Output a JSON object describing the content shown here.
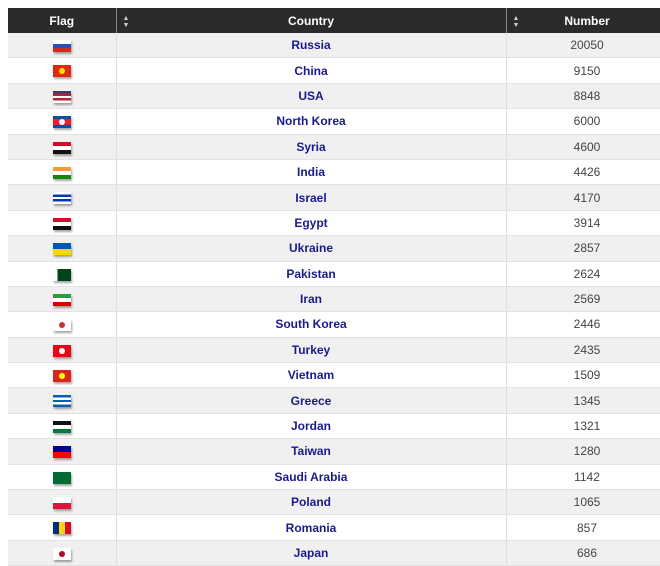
{
  "header": {
    "flag": "Flag",
    "country": "Country",
    "number": "Number",
    "sort_icon": "sort-icon"
  },
  "rows": [
    {
      "country": "Russia",
      "number": "20050",
      "flag": {
        "dir": "v",
        "colors": [
          "#ffffff",
          "#2a4fb5",
          "#d52b1e"
        ]
      }
    },
    {
      "country": "China",
      "number": "9150",
      "flag": {
        "dir": "v",
        "colors": [
          "#de2910"
        ],
        "dot": "#ffde00"
      }
    },
    {
      "country": "USA",
      "number": "8848",
      "flag": {
        "dir": "v",
        "colors": [
          "#3c3b6e",
          "#b22234",
          "#ffffff",
          "#b22234",
          "#ffffff"
        ]
      }
    },
    {
      "country": "North Korea",
      "number": "6000",
      "flag": {
        "dir": "v",
        "colors": [
          "#024fa2",
          "#ed1c27",
          "#ed1c27",
          "#024fa2"
        ],
        "dot": "#ffffff"
      }
    },
    {
      "country": "Syria",
      "number": "4600",
      "flag": {
        "dir": "v",
        "colors": [
          "#ce1126",
          "#ffffff",
          "#111111"
        ]
      }
    },
    {
      "country": "India",
      "number": "4426",
      "flag": {
        "dir": "v",
        "colors": [
          "#ff9933",
          "#ffffff",
          "#138808"
        ]
      }
    },
    {
      "country": "Israel",
      "number": "4170",
      "flag": {
        "dir": "v",
        "colors": [
          "#ffffff",
          "#0038b8",
          "#ffffff",
          "#0038b8",
          "#ffffff"
        ]
      }
    },
    {
      "country": "Egypt",
      "number": "3914",
      "flag": {
        "dir": "v",
        "colors": [
          "#ce1126",
          "#ffffff",
          "#111111"
        ]
      }
    },
    {
      "country": "Ukraine",
      "number": "2857",
      "flag": {
        "dir": "v",
        "colors": [
          "#0057b7",
          "#ffd700"
        ]
      }
    },
    {
      "country": "Pakistan",
      "number": "2624",
      "flag": {
        "dir": "h",
        "colors": [
          "#ffffff",
          "#01411c",
          "#01411c",
          "#01411c"
        ]
      }
    },
    {
      "country": "Iran",
      "number": "2569",
      "flag": {
        "dir": "v",
        "colors": [
          "#239f40",
          "#ffffff",
          "#da0000"
        ]
      }
    },
    {
      "country": "South Korea",
      "number": "2446",
      "flag": {
        "dir": "v",
        "colors": [
          "#ffffff"
        ],
        "dot": "#cd2e3a"
      }
    },
    {
      "country": "Turkey",
      "number": "2435",
      "flag": {
        "dir": "v",
        "colors": [
          "#e30a17"
        ],
        "dot": "#ffffff"
      }
    },
    {
      "country": "Vietnam",
      "number": "1509",
      "flag": {
        "dir": "v",
        "colors": [
          "#da251d"
        ],
        "dot": "#ffff00"
      }
    },
    {
      "country": "Greece",
      "number": "1345",
      "flag": {
        "dir": "v",
        "colors": [
          "#0d5eaf",
          "#ffffff",
          "#0d5eaf",
          "#ffffff",
          "#0d5eaf"
        ]
      }
    },
    {
      "country": "Jordan",
      "number": "1321",
      "flag": {
        "dir": "v",
        "colors": [
          "#111111",
          "#ffffff",
          "#007a3d"
        ]
      }
    },
    {
      "country": "Taiwan",
      "number": "1280",
      "flag": {
        "dir": "v",
        "colors": [
          "#000095",
          "#fe0000"
        ]
      }
    },
    {
      "country": "Saudi Arabia",
      "number": "1142",
      "flag": {
        "dir": "v",
        "colors": [
          "#006c35"
        ]
      }
    },
    {
      "country": "Poland",
      "number": "1065",
      "flag": {
        "dir": "v",
        "colors": [
          "#ffffff",
          "#dc143c"
        ]
      }
    },
    {
      "country": "Romania",
      "number": "857",
      "flag": {
        "dir": "h",
        "colors": [
          "#002b7f",
          "#fcd116",
          "#ce1126"
        ]
      }
    },
    {
      "country": "Japan",
      "number": "686",
      "flag": {
        "dir": "v",
        "colors": [
          "#ffffff"
        ],
        "dot": "#bc002d"
      }
    }
  ]
}
